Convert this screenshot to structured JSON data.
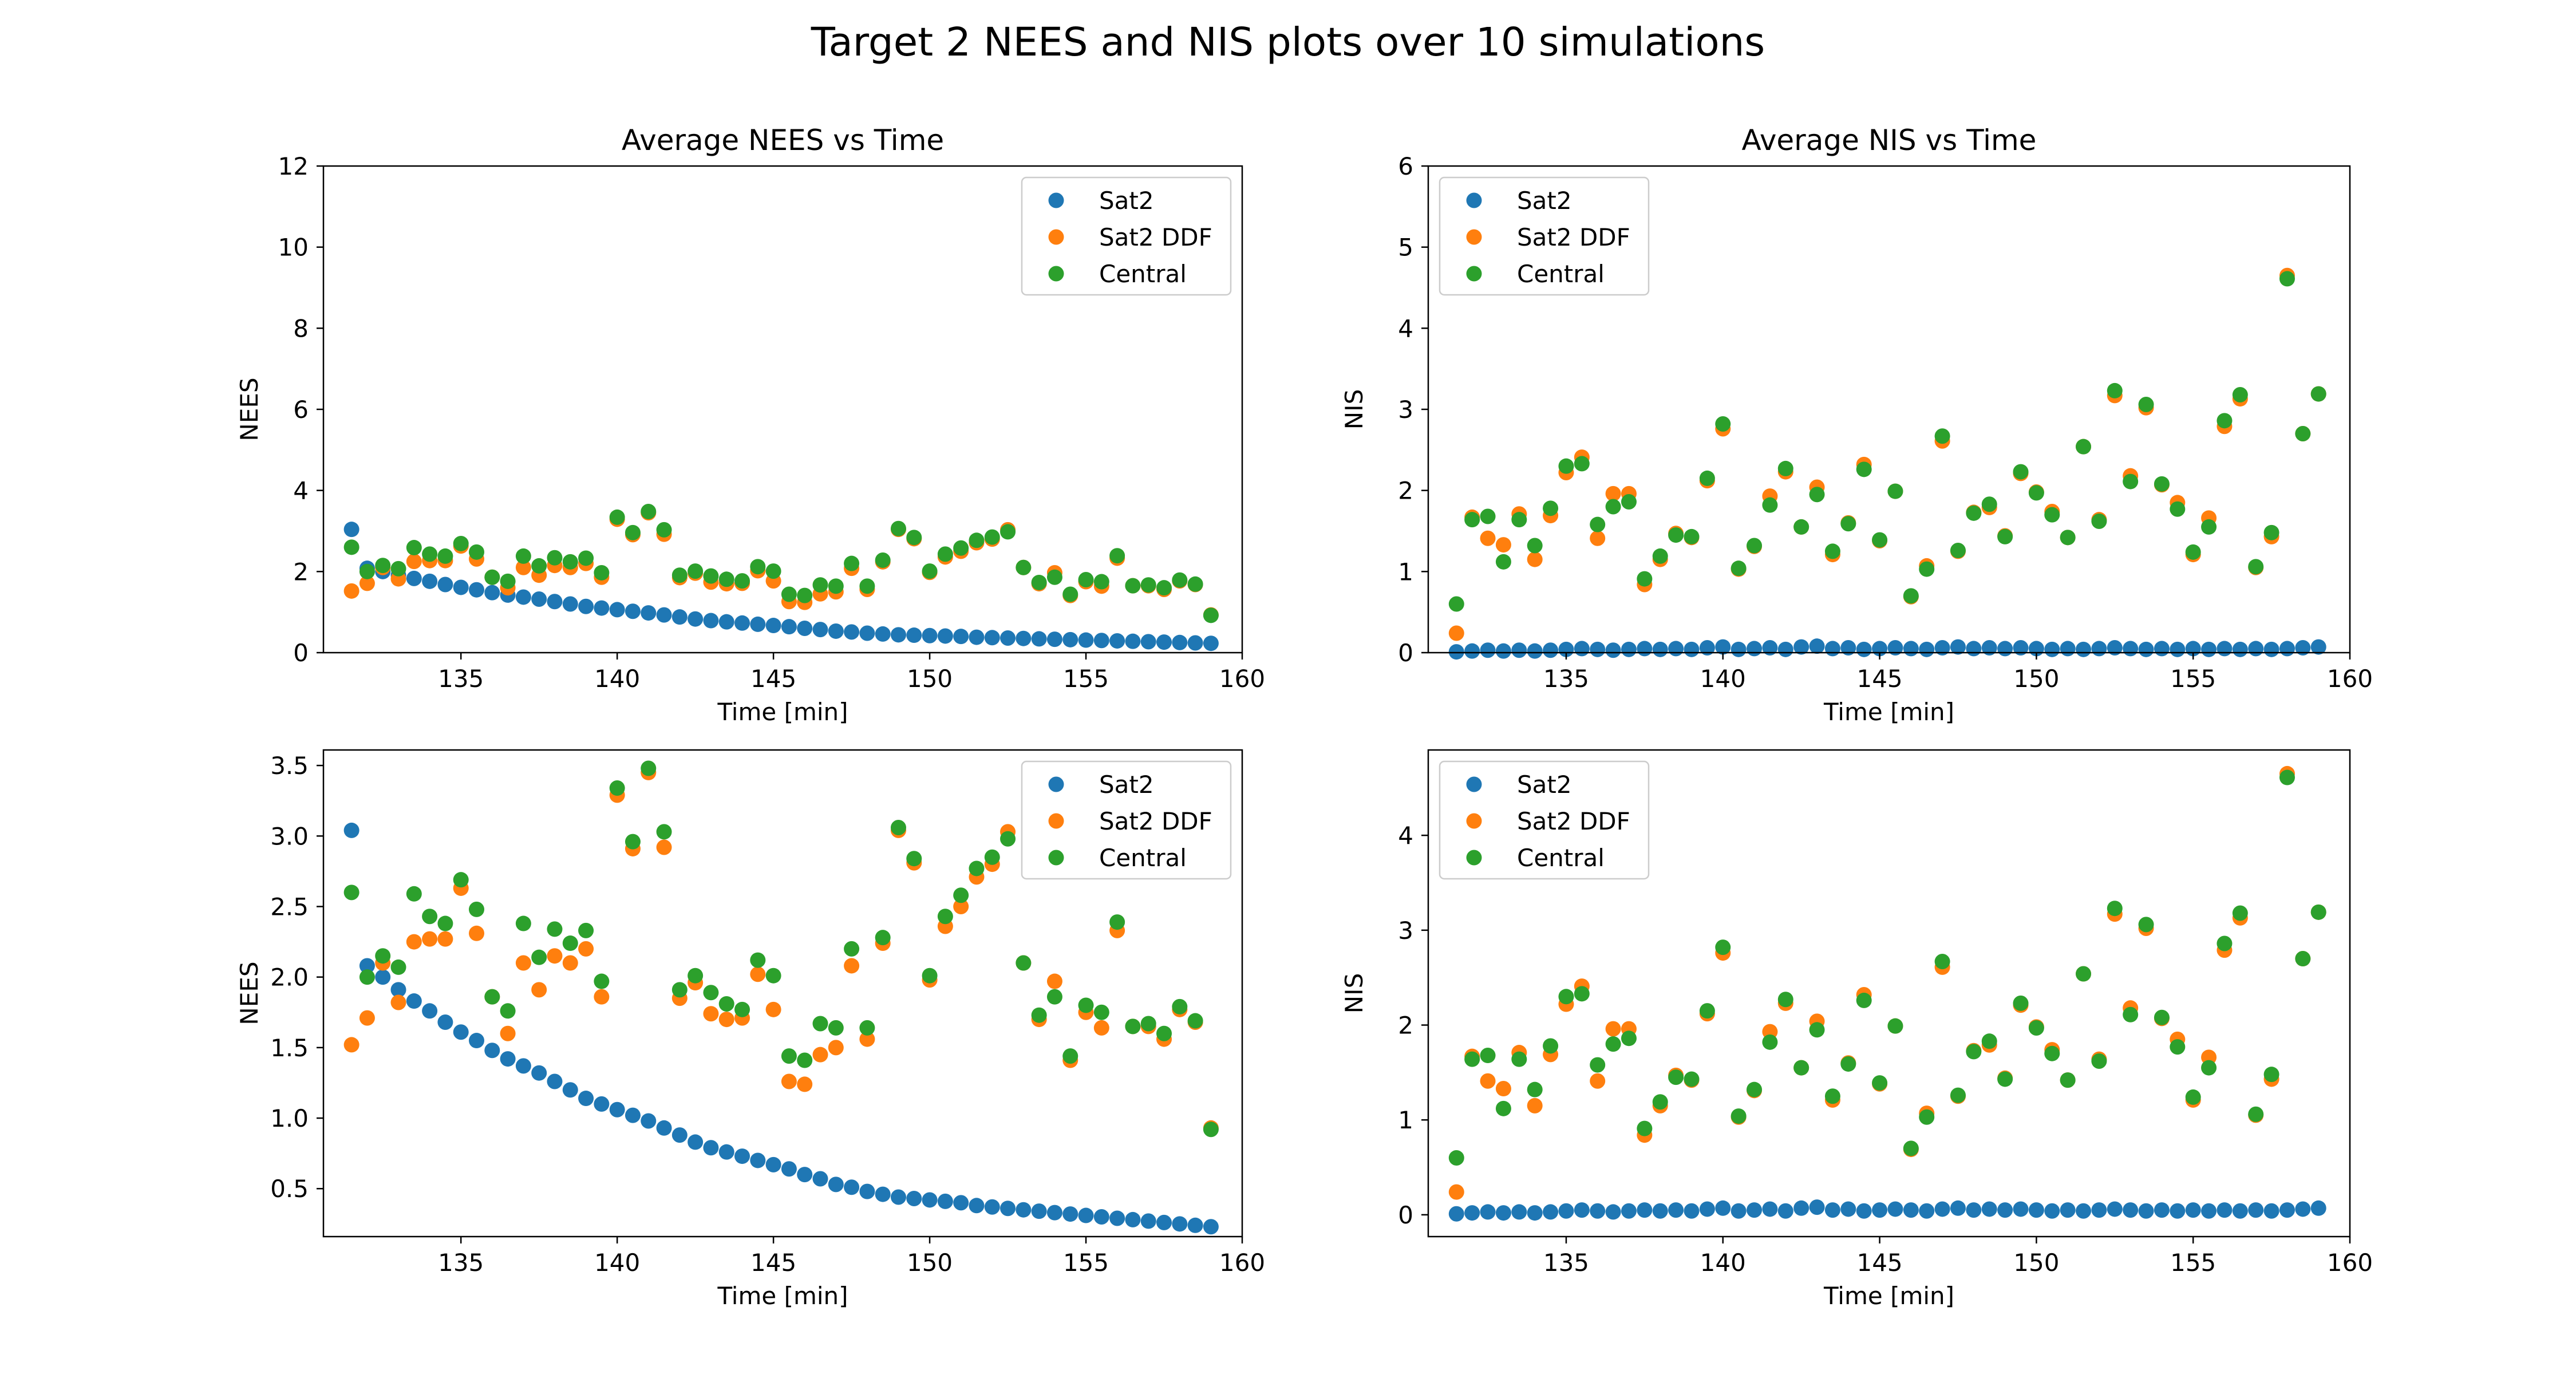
{
  "figure": {
    "title": "Target 2 NEES and NIS plots over 10 simulations"
  },
  "colors": {
    "Sat2": "#1f77b4",
    "Sat2 DDF": "#ff7f0e",
    "Central": "#2ca02c"
  },
  "chart_data": [
    {
      "id": "nees-top",
      "type": "scatter",
      "title": "Average NEES vs Time",
      "xlabel": "Time [min]",
      "ylabel": "NEES",
      "xlim": [
        130.6,
        160.0
      ],
      "ylim": [
        0,
        12
      ],
      "xticks": [
        135,
        140,
        145,
        150,
        155,
        160
      ],
      "yticks": [
        0,
        2,
        4,
        6,
        8,
        10,
        12
      ],
      "legend": "top-right",
      "series_ref": "nees"
    },
    {
      "id": "nis-top",
      "type": "scatter",
      "title": "Average NIS vs Time",
      "xlabel": "Time [min]",
      "ylabel": "NIS",
      "xlim": [
        130.6,
        160.0
      ],
      "ylim": [
        0,
        6
      ],
      "xticks": [
        135,
        140,
        145,
        150,
        155,
        160
      ],
      "yticks": [
        0,
        1,
        2,
        3,
        4,
        5,
        6
      ],
      "legend": "top-left",
      "series_ref": "nis"
    },
    {
      "id": "nees-bottom",
      "type": "scatter",
      "title": "",
      "xlabel": "Time [min]",
      "ylabel": "NEES",
      "xlim": [
        130.6,
        160.0
      ],
      "ylim": [
        0.16,
        3.61
      ],
      "xticks": [
        135,
        140,
        145,
        150,
        155,
        160
      ],
      "yticks": [
        0.5,
        1.0,
        1.5,
        2.0,
        2.5,
        3.0,
        3.5
      ],
      "legend": "top-right",
      "series_ref": "nees"
    },
    {
      "id": "nis-bottom",
      "type": "scatter",
      "title": "",
      "xlabel": "Time [min]",
      "ylabel": "NIS",
      "xlim": [
        130.6,
        160.0
      ],
      "ylim": [
        -0.23,
        4.9
      ],
      "xticks": [
        135,
        140,
        145,
        150,
        155,
        160
      ],
      "yticks": [
        0,
        1,
        2,
        3,
        4
      ],
      "legend": "top-left",
      "series_ref": "nis"
    }
  ],
  "series_data": {
    "nees": {
      "x": [
        131.5,
        132.0,
        132.5,
        133.0,
        133.5,
        134.0,
        134.5,
        135.0,
        135.5,
        136.0,
        136.5,
        137.0,
        137.5,
        138.0,
        138.5,
        139.0,
        139.5,
        140.0,
        140.5,
        141.0,
        141.5,
        142.0,
        142.5,
        143.0,
        143.5,
        144.0,
        144.5,
        145.0,
        145.5,
        146.0,
        146.5,
        147.0,
        147.5,
        148.0,
        148.5,
        149.0,
        149.5,
        150.0,
        150.5,
        151.0,
        151.5,
        152.0,
        152.5,
        153.0,
        153.5,
        154.0,
        154.5,
        155.0,
        155.5,
        156.0,
        156.5,
        157.0,
        157.5,
        158.0,
        158.5,
        159.0
      ],
      "series": [
        {
          "name": "Sat2",
          "values": [
            3.04,
            2.08,
            2.0,
            1.91,
            1.83,
            1.76,
            1.68,
            1.61,
            1.55,
            1.48,
            1.42,
            1.37,
            1.32,
            1.26,
            1.2,
            1.14,
            1.1,
            1.06,
            1.02,
            0.98,
            0.93,
            0.88,
            0.83,
            0.79,
            0.76,
            0.73,
            0.7,
            0.67,
            0.64,
            0.6,
            0.57,
            0.53,
            0.51,
            0.48,
            0.46,
            0.44,
            0.43,
            0.42,
            0.41,
            0.4,
            0.38,
            0.37,
            0.36,
            0.35,
            0.34,
            0.33,
            0.32,
            0.31,
            0.3,
            0.29,
            0.28,
            0.27,
            0.26,
            0.25,
            0.24,
            0.23
          ]
        },
        {
          "name": "Sat2 DDF",
          "values": [
            1.52,
            1.71,
            2.1,
            1.82,
            2.25,
            2.27,
            2.27,
            2.63,
            2.31,
            1.86,
            1.6,
            2.1,
            1.91,
            2.15,
            2.1,
            2.2,
            1.86,
            3.29,
            2.91,
            3.45,
            2.92,
            1.85,
            1.96,
            1.74,
            1.7,
            1.71,
            2.02,
            1.77,
            1.26,
            1.24,
            1.45,
            1.5,
            2.08,
            1.56,
            2.24,
            3.04,
            2.81,
            1.98,
            2.36,
            2.5,
            2.71,
            2.8,
            3.03,
            2.1,
            1.7,
            1.97,
            1.41,
            1.75,
            1.64,
            2.33,
            1.65,
            1.65,
            1.56,
            1.77,
            1.68,
            0.93
          ]
        },
        {
          "name": "Central",
          "values": [
            2.6,
            2.0,
            2.15,
            2.07,
            2.59,
            2.43,
            2.38,
            2.69,
            2.48,
            1.86,
            1.76,
            2.38,
            2.14,
            2.34,
            2.24,
            2.33,
            1.97,
            3.34,
            2.96,
            3.48,
            3.03,
            1.91,
            2.01,
            1.89,
            1.81,
            1.77,
            2.12,
            2.01,
            1.44,
            1.41,
            1.67,
            1.64,
            2.2,
            1.64,
            2.28,
            3.06,
            2.84,
            2.01,
            2.43,
            2.58,
            2.77,
            2.85,
            2.98,
            2.1,
            1.73,
            1.86,
            1.44,
            1.8,
            1.75,
            2.39,
            1.65,
            1.67,
            1.6,
            1.79,
            1.69,
            0.92
          ]
        }
      ]
    },
    "nis": {
      "x": [
        131.5,
        132.0,
        132.5,
        133.0,
        133.5,
        134.0,
        134.5,
        135.0,
        135.5,
        136.0,
        136.5,
        137.0,
        137.5,
        138.0,
        138.5,
        139.0,
        139.5,
        140.0,
        140.5,
        141.0,
        141.5,
        142.0,
        142.5,
        143.0,
        143.5,
        144.0,
        144.5,
        145.0,
        145.5,
        146.0,
        146.5,
        147.0,
        147.5,
        148.0,
        148.5,
        149.0,
        149.5,
        150.0,
        150.5,
        151.0,
        151.5,
        152.0,
        152.5,
        153.0,
        153.5,
        154.0,
        154.5,
        155.0,
        155.5,
        156.0,
        156.5,
        157.0,
        157.5,
        158.0,
        158.5,
        159.0
      ],
      "series": [
        {
          "name": "Sat2",
          "values": [
            0.01,
            0.02,
            0.03,
            0.02,
            0.03,
            0.02,
            0.03,
            0.04,
            0.05,
            0.04,
            0.03,
            0.04,
            0.05,
            0.04,
            0.05,
            0.04,
            0.06,
            0.07,
            0.04,
            0.05,
            0.06,
            0.04,
            0.07,
            0.08,
            0.05,
            0.06,
            0.04,
            0.05,
            0.06,
            0.05,
            0.04,
            0.06,
            0.07,
            0.05,
            0.06,
            0.05,
            0.06,
            0.05,
            0.04,
            0.05,
            0.04,
            0.05,
            0.06,
            0.05,
            0.04,
            0.05,
            0.04,
            0.05,
            0.04,
            0.05,
            0.04,
            0.05,
            0.04,
            0.05,
            0.06,
            0.07
          ]
        },
        {
          "name": "Sat2 DDF",
          "values": [
            0.24,
            1.67,
            1.41,
            1.33,
            1.71,
            1.15,
            1.69,
            2.22,
            2.41,
            1.41,
            1.96,
            1.96,
            0.84,
            1.15,
            1.47,
            1.42,
            2.12,
            2.76,
            1.03,
            1.31,
            1.93,
            2.23,
            1.55,
            2.04,
            1.21,
            1.6,
            2.32,
            1.38,
            1.99,
            0.69,
            1.07,
            2.61,
            1.25,
            1.73,
            1.79,
            1.44,
            2.21,
            1.98,
            1.74,
            1.42,
            2.54,
            1.64,
            3.17,
            2.18,
            3.02,
            2.07,
            1.85,
            1.21,
            1.66,
            2.79,
            3.13,
            1.05,
            1.43,
            4.65,
            2.7,
            3.19
          ]
        },
        {
          "name": "Central",
          "values": [
            0.6,
            1.64,
            1.68,
            1.12,
            1.64,
            1.32,
            1.78,
            2.3,
            2.33,
            1.58,
            1.8,
            1.86,
            0.91,
            1.19,
            1.45,
            1.43,
            2.15,
            2.82,
            1.04,
            1.32,
            1.82,
            2.27,
            1.55,
            1.95,
            1.25,
            1.59,
            2.26,
            1.39,
            1.99,
            0.7,
            1.03,
            2.67,
            1.26,
            1.72,
            1.83,
            1.43,
            2.23,
            1.97,
            1.7,
            1.42,
            2.54,
            1.62,
            3.23,
            2.11,
            3.06,
            2.08,
            1.77,
            1.24,
            1.55,
            2.86,
            3.18,
            1.06,
            1.48,
            4.61,
            2.7,
            3.19
          ]
        }
      ]
    }
  }
}
